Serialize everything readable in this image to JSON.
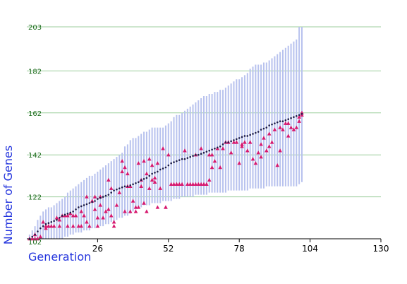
{
  "chart_data": {
    "type": "scatter",
    "title": "",
    "xlabel": "Generation",
    "ylabel": "Number of Genes",
    "xlim": [
      0,
      130
    ],
    "ylim": [
      102,
      203
    ],
    "x_ticks": [
      "26",
      "52",
      "78",
      "104",
      "130"
    ],
    "y_ticks": [
      "102",
      "122",
      "142",
      "162",
      "182",
      "203"
    ],
    "grid": "horizontal",
    "legend": "none",
    "colors": {
      "range": "#b8c2ee",
      "mean": "#1c1c4a",
      "sample": "#d6186e",
      "grid": "#9ccd9c"
    },
    "series": [
      {
        "kind": "range",
        "x": [
          1,
          2,
          3,
          4,
          5,
          6,
          7,
          8,
          9,
          10,
          11,
          12,
          13,
          14,
          15,
          16,
          17,
          18,
          19,
          20,
          21,
          22,
          23,
          24,
          25,
          26,
          27,
          28,
          29,
          30,
          31,
          32,
          33,
          34,
          35,
          36,
          37,
          38,
          39,
          40,
          41,
          42,
          43,
          44,
          45,
          46,
          47,
          48,
          49,
          50,
          51,
          52,
          53,
          54,
          55,
          56,
          57,
          58,
          59,
          60,
          61,
          62,
          63,
          64,
          65,
          66,
          67,
          68,
          69,
          70,
          71,
          72,
          73,
          74,
          75,
          76,
          77,
          78,
          79,
          80,
          81,
          82,
          83,
          84,
          85,
          86,
          87,
          88,
          89,
          90,
          91,
          92,
          93,
          94,
          95,
          96,
          97,
          98,
          99,
          100,
          101
        ],
        "high": [
          104,
          106,
          108,
          111,
          113,
          115,
          116,
          117,
          117,
          118,
          119,
          120,
          121,
          122,
          124,
          125,
          126,
          127,
          128,
          129,
          130,
          131,
          132,
          132,
          133,
          134,
          135,
          136,
          137,
          138,
          139,
          140,
          141,
          142,
          143,
          146,
          147,
          149,
          150,
          150,
          151,
          152,
          153,
          153,
          154,
          155,
          155,
          155,
          155,
          155,
          156,
          157,
          158,
          160,
          161,
          161,
          162,
          163,
          164,
          165,
          166,
          167,
          168,
          169,
          170,
          170,
          171,
          171,
          172,
          172,
          173,
          173,
          174,
          175,
          176,
          177,
          178,
          178,
          179,
          180,
          181,
          183,
          184,
          185,
          185,
          185,
          186,
          186,
          187,
          188,
          189,
          190,
          191,
          192,
          193,
          194,
          195,
          196,
          197,
          203,
          203
        ],
        "low": [
          102,
          102,
          102,
          102,
          102,
          102,
          102,
          102,
          102,
          102,
          102,
          102,
          102,
          103,
          103,
          104,
          104,
          105,
          105,
          105,
          106,
          106,
          106,
          107,
          107,
          108,
          108,
          108,
          109,
          109,
          110,
          110,
          111,
          112,
          112,
          113,
          113,
          114,
          115,
          116,
          117,
          117,
          118,
          118,
          118,
          119,
          119,
          119,
          119,
          120,
          120,
          120,
          120,
          121,
          121,
          121,
          122,
          122,
          122,
          122,
          122,
          123,
          123,
          123,
          123,
          123,
          124,
          124,
          124,
          124,
          124,
          124,
          124,
          125,
          125,
          125,
          125,
          125,
          125,
          125,
          125,
          126,
          126,
          126,
          126,
          126,
          126,
          127,
          127,
          127,
          127,
          127,
          127,
          127,
          127,
          127,
          127,
          127,
          127,
          128,
          129
        ]
      },
      {
        "kind": "mean",
        "x": [
          1,
          2,
          3,
          4,
          5,
          6,
          7,
          8,
          9,
          10,
          11,
          12,
          13,
          14,
          15,
          16,
          17,
          18,
          19,
          20,
          21,
          22,
          23,
          24,
          25,
          26,
          27,
          28,
          29,
          30,
          31,
          32,
          33,
          34,
          35,
          36,
          37,
          38,
          39,
          40,
          41,
          42,
          43,
          44,
          45,
          46,
          47,
          48,
          49,
          50,
          51,
          52,
          53,
          54,
          55,
          56,
          57,
          58,
          59,
          60,
          61,
          62,
          63,
          64,
          65,
          66,
          67,
          68,
          69,
          70,
          71,
          72,
          73,
          74,
          75,
          76,
          77,
          78,
          79,
          80,
          81,
          82,
          83,
          84,
          85,
          86,
          87,
          88,
          89,
          90,
          91,
          92,
          93,
          94,
          95,
          96,
          97,
          98,
          99,
          100,
          101
        ],
        "y": [
          102,
          103,
          104,
          105.5,
          107,
          108,
          109,
          109.5,
          110,
          110.5,
          111,
          112,
          113,
          113.5,
          114,
          114.5,
          115,
          116,
          117,
          117.5,
          118,
          118.5,
          119,
          119.5,
          120,
          121,
          121.5,
          122,
          122.5,
          123,
          124,
          125,
          125.5,
          126,
          126.5,
          127,
          127,
          127.5,
          128,
          128.5,
          129,
          130,
          130.5,
          131,
          132,
          133,
          133.5,
          134,
          135,
          135.5,
          136,
          137,
          138,
          138.5,
          139,
          139.5,
          140,
          140,
          140.5,
          141,
          141.5,
          142,
          142,
          142.5,
          143,
          143.5,
          144,
          144.5,
          145,
          145.5,
          146,
          147,
          148,
          148,
          148.5,
          149,
          149.5,
          150,
          150.5,
          151,
          151,
          151.5,
          152,
          152.5,
          153,
          154,
          154.5,
          155,
          156,
          156.5,
          157,
          157.5,
          158,
          158,
          158.5,
          159,
          159.5,
          160,
          160.5,
          161,
          161.5
        ]
      },
      {
        "kind": "sample",
        "x": [
          1,
          2,
          3,
          3,
          4,
          5,
          6,
          7,
          7,
          8,
          8,
          9,
          10,
          11,
          12,
          12,
          13,
          14,
          15,
          15,
          16,
          17,
          17,
          18,
          19,
          20,
          20,
          21,
          22,
          22,
          23,
          24,
          25,
          25,
          26,
          26,
          27,
          27,
          28,
          29,
          30,
          30,
          31,
          31,
          32,
          32,
          33,
          34,
          35,
          35,
          36,
          36,
          37,
          37,
          38,
          38,
          39,
          40,
          40,
          41,
          41,
          42,
          42,
          43,
          43,
          44,
          44,
          45,
          45,
          46,
          46,
          47,
          47,
          48,
          48,
          49,
          50,
          51,
          51,
          52,
          53,
          54,
          55,
          55,
          56,
          57,
          58,
          59,
          60,
          61,
          62,
          62,
          63,
          64,
          64,
          65,
          66,
          67,
          67,
          68,
          68,
          69,
          70,
          71,
          72,
          73,
          74,
          75,
          76,
          77,
          78,
          79,
          79,
          80,
          81,
          82,
          83,
          84,
          85,
          86,
          86,
          87,
          88,
          89,
          89,
          90,
          91,
          92,
          93,
          93,
          94,
          95,
          96,
          96,
          97,
          98,
          99,
          100,
          100,
          101,
          101
        ],
        "y": [
          102,
          102,
          104,
          102,
          102,
          103,
          110,
          108,
          107,
          108,
          108,
          108,
          108,
          112,
          108,
          111,
          113,
          113,
          113,
          108,
          114,
          113,
          108,
          113,
          108,
          115,
          108,
          113,
          122,
          110,
          108,
          120,
          122,
          116,
          112,
          108,
          118,
          122,
          112,
          115,
          130,
          116,
          126,
          113,
          110,
          108,
          118,
          124,
          134,
          139,
          136,
          115,
          127,
          133,
          127,
          115,
          120,
          117,
          115,
          117,
          138,
          130,
          127,
          139,
          119,
          133,
          115,
          140,
          126,
          137,
          130,
          129,
          131,
          117,
          138,
          126,
          145,
          117,
          117,
          142,
          128,
          128,
          128,
          128,
          128,
          128,
          144,
          128,
          128,
          128,
          128,
          142,
          128,
          128,
          145,
          128,
          128,
          130,
          142,
          136,
          142,
          139,
          145,
          136,
          145,
          148,
          148,
          143,
          148,
          148,
          138,
          147,
          146,
          148,
          144,
          148,
          140,
          138,
          143,
          141,
          147,
          150,
          144,
          146,
          152,
          148,
          154,
          137,
          144,
          155,
          154,
          157,
          157,
          151,
          155,
          154,
          155,
          160,
          158,
          161,
          162
        ]
      }
    ]
  }
}
